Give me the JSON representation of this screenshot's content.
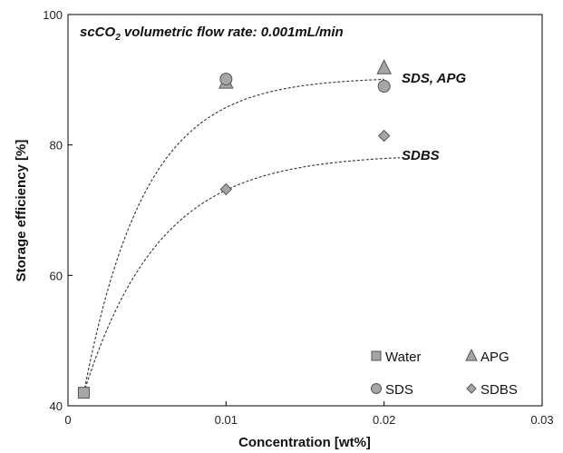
{
  "chart_data": {
    "type": "scatter",
    "title": "scCO2 volumetric flow rate: 0.001mL/min",
    "xlabel": "Concentration [wt%]",
    "ylabel": "Storage efficiency [%]",
    "xlim": [
      0,
      0.03
    ],
    "ylim": [
      40,
      100
    ],
    "x_ticks": [
      "0",
      "0.01",
      "0.02",
      "0.03"
    ],
    "y_ticks": [
      "40",
      "60",
      "80",
      "100"
    ],
    "legend_position": "bottom-right",
    "series": [
      {
        "name": "Water",
        "marker": "square",
        "color": "#a6a6a6",
        "points": [
          [
            0.001,
            42
          ]
        ]
      },
      {
        "name": "APG",
        "marker": "triangle",
        "color": "#a6a6a6",
        "points": [
          [
            0.01,
            89.6
          ],
          [
            0.02,
            91.8
          ]
        ]
      },
      {
        "name": "SDS",
        "marker": "circle",
        "color": "#a6a6a6",
        "points": [
          [
            0.01,
            90.1
          ],
          [
            0.02,
            89.0
          ]
        ]
      },
      {
        "name": "SDBS",
        "marker": "diamond",
        "color": "#a6a6a6",
        "points": [
          [
            0.01,
            73.2
          ],
          [
            0.02,
            81.4
          ]
        ]
      }
    ],
    "fit_curves": [
      {
        "label": "SDS, APG",
        "plateau": 90.4,
        "start": [
          0.001,
          42
        ],
        "x_end": 0.02
      },
      {
        "label": "SDBS",
        "plateau": 78.6,
        "start": [
          0.001,
          42
        ],
        "x_end": 0.021
      }
    ]
  }
}
